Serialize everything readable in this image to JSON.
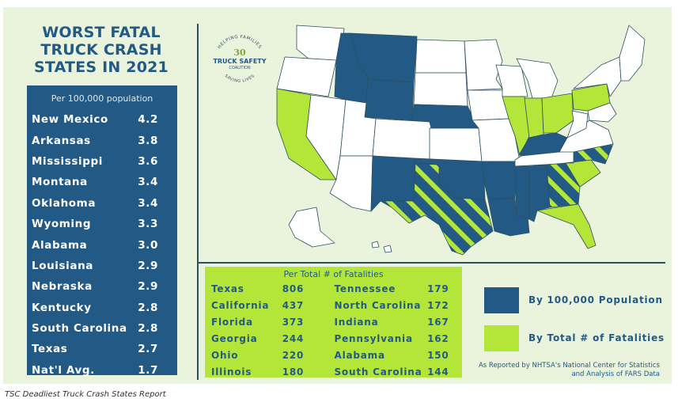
{
  "title_lines": [
    "WORST FATAL",
    "TRUCK CRASH",
    "STATES IN 2021"
  ],
  "per_capita": {
    "header": "Per 100,000 population",
    "rows": [
      {
        "state": "New Mexico",
        "value": "4.2"
      },
      {
        "state": "Arkansas",
        "value": "3.8"
      },
      {
        "state": "Mississippi",
        "value": "3.6"
      },
      {
        "state": "Montana",
        "value": "3.4"
      },
      {
        "state": "Oklahoma",
        "value": "3.4"
      },
      {
        "state": "Wyoming",
        "value": "3.3"
      },
      {
        "state": "Alabama",
        "value": "3.0"
      },
      {
        "state": "Louisiana",
        "value": "2.9"
      },
      {
        "state": "Nebraska",
        "value": "2.9"
      },
      {
        "state": "Kentucky",
        "value": "2.8"
      },
      {
        "state": "South Carolina",
        "value": "2.8"
      },
      {
        "state": "Texas",
        "value": "2.7"
      },
      {
        "state": "Nat'l Avg.",
        "value": "1.7"
      }
    ]
  },
  "totals": {
    "header": "Per Total # of Fatalities",
    "left": [
      {
        "state": "Texas",
        "value": "806"
      },
      {
        "state": "California",
        "value": "437"
      },
      {
        "state": "Florida",
        "value": "373"
      },
      {
        "state": "Georgia",
        "value": "244"
      },
      {
        "state": "Ohio",
        "value": "220"
      },
      {
        "state": "Illinois",
        "value": "180"
      }
    ],
    "right": [
      {
        "state": "Tennessee",
        "value": "179"
      },
      {
        "state": "North Carolina",
        "value": "172"
      },
      {
        "state": "Indiana",
        "value": "167"
      },
      {
        "state": "Pennsylvania",
        "value": "162"
      },
      {
        "state": "Alabama",
        "value": "150"
      },
      {
        "state": "South Carolina",
        "value": "144"
      }
    ]
  },
  "legend": {
    "per_capita_label": "By 100,000 Population",
    "total_label": "By Total # of Fatalities"
  },
  "logo": {
    "arc_top": "HELPING FAMILIES",
    "number": "30",
    "line1": "TRUCK SAFETY",
    "line2": "COALITION",
    "arc_bottom": "SAVING LIVES"
  },
  "source": "As Reported by NHTSA's National Center for Statistics and Analysis of FARS Data",
  "caption": "TSC Deadliest Truck Crash States Report",
  "colors": {
    "navy": "#235a85",
    "lime": "#b4e63a",
    "panel": "#eaf3dc",
    "outline": "#2d4f5f"
  }
}
